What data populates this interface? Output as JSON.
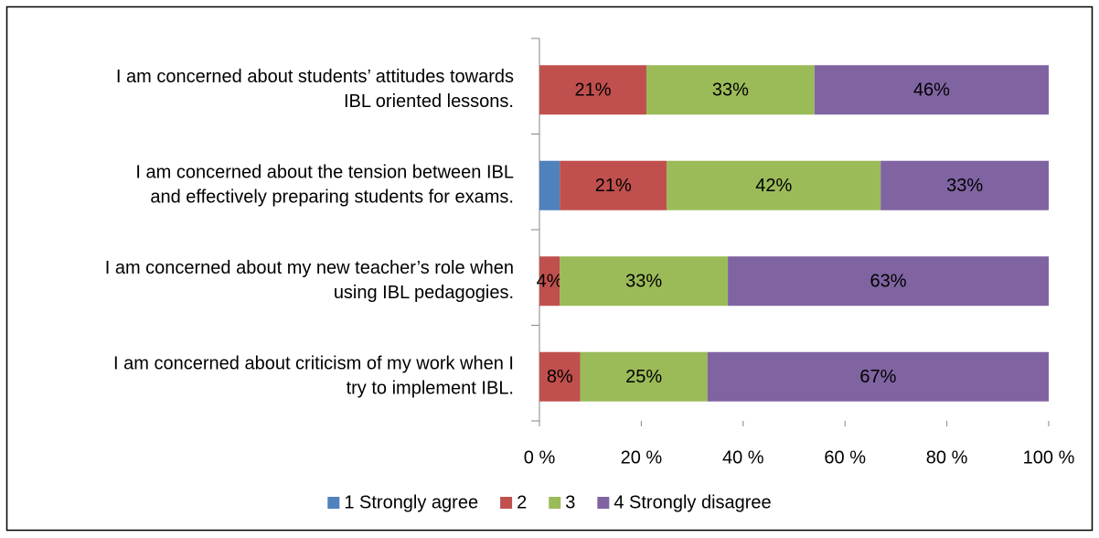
{
  "chart_data": {
    "type": "stacked-bar-horizontal",
    "categories": [
      [
        "I am concerned about students’ attitudes towards",
        "IBL oriented lessons."
      ],
      [
        "I am concerned about the tension between IBL",
        "and effectively preparing students for exams."
      ],
      [
        "I am concerned about my new teacher’s role when",
        "using IBL pedagogies."
      ],
      [
        "I am concerned about criticism of my work when I",
        "try to implement IBL."
      ]
    ],
    "series": [
      {
        "name": "1 Strongly agree",
        "color": "#4f81bd",
        "values": [
          0,
          4,
          0,
          0
        ]
      },
      {
        "name": "2",
        "color": "#c0504d",
        "values": [
          21,
          21,
          4,
          8
        ],
        "value_labels": [
          "21%",
          "21%",
          "4%",
          "8%"
        ]
      },
      {
        "name": "3",
        "color": "#9bbb59",
        "values": [
          33,
          42,
          33,
          25
        ],
        "value_labels": [
          "33%",
          "42%",
          "33%",
          "25%"
        ]
      },
      {
        "name": "4 Strongly disagree",
        "color": "#8064a2",
        "values": [
          46,
          33,
          63,
          67
        ],
        "value_labels": [
          "46%",
          "33%",
          "63%",
          "67%"
        ]
      }
    ],
    "xlim": [
      0,
      100
    ],
    "xticks": [
      {
        "value": 0,
        "label": "0 %"
      },
      {
        "value": 20,
        "label": "20 %"
      },
      {
        "value": 40,
        "label": "40 %"
      },
      {
        "value": 60,
        "label": "60 %"
      },
      {
        "value": 80,
        "label": "80 %"
      },
      {
        "value": 100,
        "label": "100 %"
      }
    ],
    "grid": false,
    "legend": "bottom"
  }
}
